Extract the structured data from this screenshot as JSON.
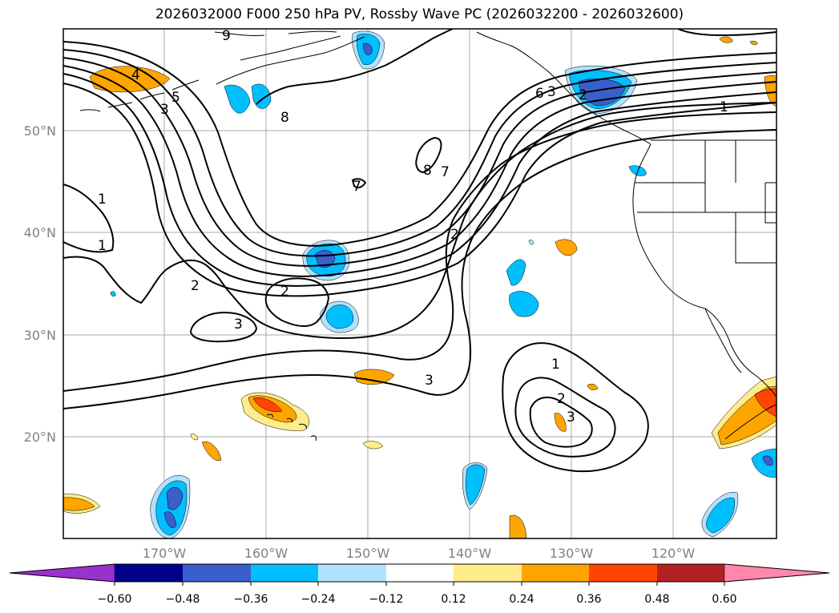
{
  "title": "2026032000 F000 250 hPa PV, Rossby Wave PC (2026032200 - 2026032600)",
  "lat_labels": [
    "50°N",
    "40°N",
    "30°N",
    "20°N"
  ],
  "lon_labels": [
    "170°W",
    "160°W",
    "150°W",
    "140°W",
    "130°W",
    "120°W"
  ],
  "colorbar": {
    "ticks": [
      "−0.60",
      "−0.48",
      "−0.36",
      "−0.24",
      "−0.12",
      "0.12",
      "0.24",
      "0.36",
      "0.48",
      "0.60"
    ],
    "colors": [
      "#9932CC",
      "#00008B",
      "#3A5FCD",
      "#00BFFF",
      "#B0E2FF",
      "#FFFFFF",
      "#FFEC8B",
      "#FFA500",
      "#FF4500",
      "#B22222",
      "#FF88AA"
    ]
  },
  "contour_labels": [
    "9",
    "4",
    "5",
    "3",
    "8",
    "6",
    "1",
    "2",
    "7",
    "3",
    "1",
    "8",
    "7",
    "2",
    "2",
    "3",
    "1",
    "2",
    "3",
    "1",
    "2",
    "3"
  ],
  "fill_colors": {
    "blue_light": "#B0E2FF",
    "blue": "#00BFFF",
    "blue_dark": "#3A5FCD",
    "yellow": "#FFEC8B",
    "orange": "#FFA500",
    "red": "#FF4500"
  }
}
